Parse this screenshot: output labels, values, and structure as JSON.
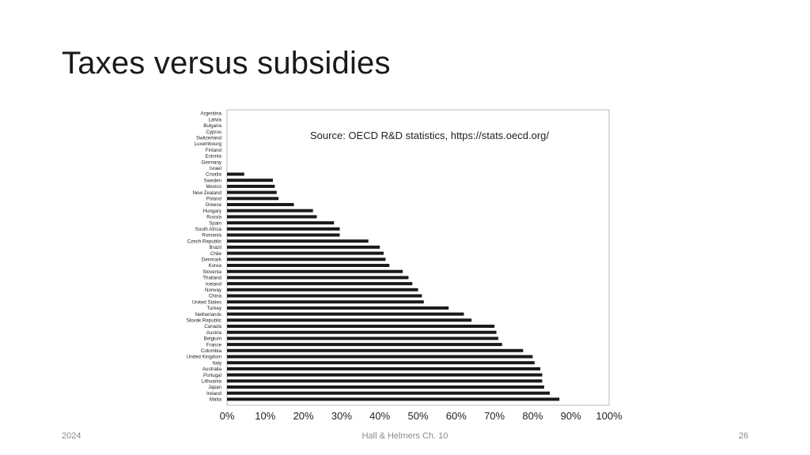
{
  "slide": {
    "title": "Taxes versus subsidies",
    "footer_left": "2024",
    "footer_center": "Hall & Helmers Ch. 10",
    "footer_right": "26"
  },
  "chart_data": {
    "type": "bar",
    "orientation": "horizontal",
    "annotation": "Source: OECD R&D statistics, https://stats.oecd.org/",
    "categories": [
      "Argentina",
      "Latvia",
      "Bulgaria",
      "Cyprus",
      "Switzerland",
      "Luxembourg",
      "Finland",
      "Estonia",
      "Germany",
      "Israel",
      "Croatia",
      "Sweden",
      "Mexico",
      "New Zealand",
      "Poland",
      "Greece",
      "Hungary",
      "Russia",
      "Spain",
      "South Africa",
      "Romania",
      "Czech Republic",
      "Brazil",
      "Chile",
      "Denmark",
      "Korea",
      "Slovenia",
      "Thailand",
      "Iceland",
      "Norway",
      "China",
      "United States",
      "Turkey",
      "Netherlands",
      "Slovak Republic",
      "Canada",
      "Austria",
      "Belgium",
      "France",
      "Colombia",
      "United Kingdom",
      "Italy",
      "Australia",
      "Portugal",
      "Lithuania",
      "Japan",
      "Ireland",
      "Malta"
    ],
    "values": [
      0,
      0,
      0,
      0,
      0,
      0,
      0,
      0,
      0,
      0,
      4.5,
      12,
      12.5,
      13,
      13.5,
      17.5,
      22.5,
      23.5,
      28,
      29.5,
      29.5,
      37,
      40,
      41,
      41.5,
      42.5,
      46,
      47.5,
      48.5,
      50,
      51,
      51.5,
      58,
      62,
      64,
      70,
      70.5,
      71,
      72,
      77.5,
      80,
      80.5,
      82,
      82.5,
      82.5,
      83,
      84.5,
      87
    ],
    "xlim": [
      0,
      100
    ],
    "xticks": [
      "0%",
      "10%",
      "20%",
      "30%",
      "40%",
      "50%",
      "60%",
      "70%",
      "80%",
      "90%",
      "100%"
    ],
    "grid": false,
    "bar_color": "#1a1a1a"
  }
}
